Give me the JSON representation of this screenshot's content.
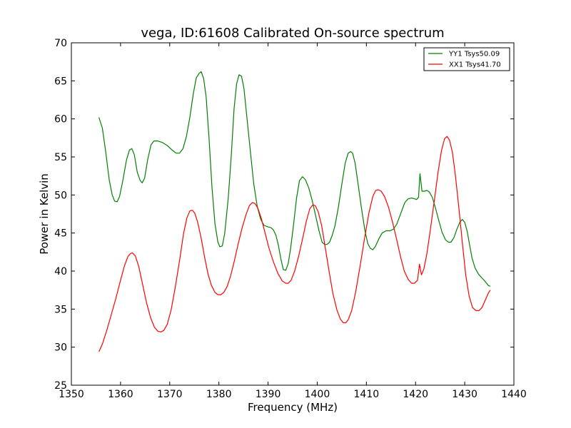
{
  "chart_data": {
    "type": "line",
    "title": "vega, ID:61608 Calibrated On-source spectrum",
    "xlabel": "Frequency (MHz)",
    "ylabel": "Power in Kelvin",
    "xlim": [
      1350,
      1440
    ],
    "ylim": [
      25,
      70
    ],
    "xticks": [
      1350,
      1360,
      1370,
      1380,
      1390,
      1400,
      1410,
      1420,
      1430,
      1440
    ],
    "yticks": [
      25,
      30,
      35,
      40,
      45,
      50,
      55,
      60,
      65,
      70
    ],
    "grid": false,
    "legend_position": "top-right",
    "series": [
      {
        "name": "YY1 Tsys50.09",
        "color": "#008000",
        "points": [
          [
            1355.6,
            60.2
          ],
          [
            1356.3,
            58.8
          ],
          [
            1357.0,
            55.6
          ],
          [
            1357.7,
            52.0
          ],
          [
            1358.3,
            50.0
          ],
          [
            1358.8,
            49.2
          ],
          [
            1359.3,
            49.1
          ],
          [
            1359.8,
            49.8
          ],
          [
            1360.5,
            52.0
          ],
          [
            1361.2,
            54.6
          ],
          [
            1361.8,
            55.9
          ],
          [
            1362.3,
            56.1
          ],
          [
            1362.8,
            55.3
          ],
          [
            1363.4,
            53.0
          ],
          [
            1364.0,
            51.9
          ],
          [
            1364.4,
            51.6
          ],
          [
            1364.9,
            52.2
          ],
          [
            1365.5,
            54.6
          ],
          [
            1366.2,
            56.6
          ],
          [
            1366.8,
            57.1
          ],
          [
            1367.5,
            57.1
          ],
          [
            1368.5,
            56.9
          ],
          [
            1369.5,
            56.5
          ],
          [
            1370.5,
            55.9
          ],
          [
            1371.3,
            55.5
          ],
          [
            1372.0,
            55.5
          ],
          [
            1372.7,
            56.1
          ],
          [
            1373.4,
            57.7
          ],
          [
            1374.1,
            60.2
          ],
          [
            1374.8,
            63.3
          ],
          [
            1375.4,
            65.4
          ],
          [
            1376.0,
            66.0
          ],
          [
            1376.4,
            66.2
          ],
          [
            1376.9,
            65.3
          ],
          [
            1377.4,
            62.9
          ],
          [
            1378.0,
            57.4
          ],
          [
            1378.6,
            51.0
          ],
          [
            1379.2,
            46.2
          ],
          [
            1379.8,
            43.8
          ],
          [
            1380.2,
            43.2
          ],
          [
            1380.7,
            43.3
          ],
          [
            1381.2,
            45.0
          ],
          [
            1381.9,
            49.6
          ],
          [
            1382.5,
            55.0
          ],
          [
            1383.1,
            61.4
          ],
          [
            1383.6,
            64.6
          ],
          [
            1384.1,
            65.8
          ],
          [
            1384.6,
            65.6
          ],
          [
            1385.1,
            64.0
          ],
          [
            1385.7,
            60.2
          ],
          [
            1386.4,
            55.7
          ],
          [
            1387.1,
            51.4
          ],
          [
            1387.8,
            48.5
          ],
          [
            1388.5,
            46.8
          ],
          [
            1389.2,
            46.0
          ],
          [
            1390.0,
            45.8
          ],
          [
            1390.6,
            45.7
          ],
          [
            1391.1,
            45.4
          ],
          [
            1391.6,
            44.7
          ],
          [
            1392.1,
            43.4
          ],
          [
            1392.6,
            41.6
          ],
          [
            1393.1,
            40.2
          ],
          [
            1393.6,
            40.1
          ],
          [
            1394.1,
            41.0
          ],
          [
            1394.6,
            43.0
          ],
          [
            1395.2,
            46.2
          ],
          [
            1395.8,
            49.6
          ],
          [
            1396.4,
            51.9
          ],
          [
            1397.0,
            52.4
          ],
          [
            1397.6,
            52.0
          ],
          [
            1398.3,
            50.9
          ],
          [
            1399.0,
            49.2
          ],
          [
            1399.7,
            47.2
          ],
          [
            1400.4,
            45.2
          ],
          [
            1401.0,
            43.8
          ],
          [
            1401.5,
            43.5
          ],
          [
            1402.0,
            43.5
          ],
          [
            1402.5,
            43.8
          ],
          [
            1403.0,
            44.6
          ],
          [
            1403.6,
            45.9
          ],
          [
            1404.3,
            48.4
          ],
          [
            1405.0,
            51.4
          ],
          [
            1405.7,
            54.2
          ],
          [
            1406.3,
            55.5
          ],
          [
            1406.8,
            55.7
          ],
          [
            1407.2,
            55.5
          ],
          [
            1407.7,
            54.2
          ],
          [
            1408.3,
            51.5
          ],
          [
            1409.0,
            48.3
          ],
          [
            1409.7,
            45.3
          ],
          [
            1410.3,
            43.6
          ],
          [
            1410.8,
            43.0
          ],
          [
            1411.3,
            42.8
          ],
          [
            1411.8,
            43.2
          ],
          [
            1412.5,
            44.2
          ],
          [
            1413.2,
            45.0
          ],
          [
            1414.0,
            45.3
          ],
          [
            1414.8,
            45.3
          ],
          [
            1415.5,
            45.5
          ],
          [
            1416.2,
            46.2
          ],
          [
            1417.0,
            47.6
          ],
          [
            1417.8,
            49.0
          ],
          [
            1418.5,
            49.5
          ],
          [
            1419.2,
            49.6
          ],
          [
            1419.8,
            49.5
          ],
          [
            1420.2,
            49.4
          ],
          [
            1420.6,
            49.7
          ],
          [
            1420.9,
            52.8
          ],
          [
            1421.3,
            50.5
          ],
          [
            1421.8,
            50.5
          ],
          [
            1422.3,
            50.6
          ],
          [
            1422.8,
            50.4
          ],
          [
            1423.4,
            49.7
          ],
          [
            1424.0,
            48.4
          ],
          [
            1424.7,
            46.7
          ],
          [
            1425.4,
            45.1
          ],
          [
            1426.1,
            44.1
          ],
          [
            1426.7,
            43.8
          ],
          [
            1427.2,
            43.8
          ],
          [
            1427.8,
            44.4
          ],
          [
            1428.4,
            45.5
          ],
          [
            1429.0,
            46.4
          ],
          [
            1429.5,
            46.8
          ],
          [
            1430.0,
            46.4
          ],
          [
            1430.5,
            45.2
          ],
          [
            1431.0,
            43.4
          ],
          [
            1431.5,
            41.7
          ],
          [
            1432.1,
            40.4
          ],
          [
            1432.8,
            39.6
          ],
          [
            1433.5,
            39.1
          ],
          [
            1434.2,
            38.6
          ],
          [
            1434.8,
            38.1
          ],
          [
            1435.2,
            38.0
          ]
        ]
      },
      {
        "name": "XX1 Tsys41.70",
        "color": "#ff0000",
        "points": [
          [
            1355.6,
            29.4
          ],
          [
            1356.3,
            30.4
          ],
          [
            1357.1,
            32.0
          ],
          [
            1358.0,
            34.0
          ],
          [
            1359.0,
            36.3
          ],
          [
            1360.0,
            38.8
          ],
          [
            1360.8,
            40.7
          ],
          [
            1361.5,
            41.9
          ],
          [
            1362.0,
            42.3
          ],
          [
            1362.4,
            42.4
          ],
          [
            1363.0,
            42.0
          ],
          [
            1363.7,
            40.6
          ],
          [
            1364.5,
            38.2
          ],
          [
            1365.3,
            35.8
          ],
          [
            1366.1,
            33.9
          ],
          [
            1366.9,
            32.6
          ],
          [
            1367.6,
            32.1
          ],
          [
            1368.2,
            32.0
          ],
          [
            1368.8,
            32.2
          ],
          [
            1369.5,
            33.0
          ],
          [
            1370.3,
            34.9
          ],
          [
            1371.1,
            37.8
          ],
          [
            1372.0,
            41.4
          ],
          [
            1372.8,
            44.9
          ],
          [
            1373.5,
            47.0
          ],
          [
            1374.1,
            47.9
          ],
          [
            1374.6,
            48.0
          ],
          [
            1375.1,
            47.6
          ],
          [
            1375.7,
            46.4
          ],
          [
            1376.4,
            44.3
          ],
          [
            1377.1,
            41.8
          ],
          [
            1377.8,
            39.6
          ],
          [
            1378.5,
            38.1
          ],
          [
            1379.2,
            37.2
          ],
          [
            1379.8,
            36.9
          ],
          [
            1380.4,
            36.9
          ],
          [
            1381.0,
            37.2
          ],
          [
            1381.7,
            38.0
          ],
          [
            1382.4,
            39.4
          ],
          [
            1383.1,
            41.2
          ],
          [
            1383.9,
            43.5
          ],
          [
            1384.7,
            45.6
          ],
          [
            1385.5,
            47.4
          ],
          [
            1386.2,
            48.6
          ],
          [
            1386.8,
            49.0
          ],
          [
            1387.3,
            48.9
          ],
          [
            1387.9,
            48.3
          ],
          [
            1388.6,
            47.0
          ],
          [
            1389.4,
            45.0
          ],
          [
            1390.2,
            43.0
          ],
          [
            1391.1,
            41.2
          ],
          [
            1392.0,
            39.7
          ],
          [
            1392.9,
            38.7
          ],
          [
            1393.6,
            38.4
          ],
          [
            1394.1,
            38.4
          ],
          [
            1394.7,
            38.8
          ],
          [
            1395.4,
            40.0
          ],
          [
            1396.2,
            41.9
          ],
          [
            1397.0,
            44.2
          ],
          [
            1397.8,
            46.6
          ],
          [
            1398.5,
            48.2
          ],
          [
            1399.1,
            48.7
          ],
          [
            1399.6,
            48.6
          ],
          [
            1400.2,
            47.8
          ],
          [
            1400.9,
            46.0
          ],
          [
            1401.6,
            43.2
          ],
          [
            1402.4,
            40.0
          ],
          [
            1403.2,
            37.0
          ],
          [
            1404.0,
            34.9
          ],
          [
            1404.7,
            33.7
          ],
          [
            1405.3,
            33.2
          ],
          [
            1405.8,
            33.2
          ],
          [
            1406.3,
            33.6
          ],
          [
            1407.0,
            34.8
          ],
          [
            1407.8,
            37.2
          ],
          [
            1408.7,
            40.6
          ],
          [
            1409.6,
            44.2
          ],
          [
            1410.5,
            47.6
          ],
          [
            1411.3,
            49.8
          ],
          [
            1411.9,
            50.6
          ],
          [
            1412.4,
            50.7
          ],
          [
            1413.0,
            50.5
          ],
          [
            1413.7,
            49.8
          ],
          [
            1414.5,
            48.4
          ],
          [
            1415.3,
            46.5
          ],
          [
            1416.1,
            44.3
          ],
          [
            1416.9,
            42.0
          ],
          [
            1417.7,
            40.0
          ],
          [
            1418.5,
            38.9
          ],
          [
            1419.2,
            38.4
          ],
          [
            1419.8,
            38.4
          ],
          [
            1420.4,
            38.8
          ],
          [
            1420.8,
            40.9
          ],
          [
            1421.2,
            39.5
          ],
          [
            1421.7,
            40.3
          ],
          [
            1422.3,
            42.3
          ],
          [
            1423.0,
            45.4
          ],
          [
            1423.8,
            49.2
          ],
          [
            1424.6,
            53.1
          ],
          [
            1425.3,
            55.9
          ],
          [
            1425.9,
            57.4
          ],
          [
            1426.4,
            57.7
          ],
          [
            1426.9,
            57.2
          ],
          [
            1427.5,
            55.6
          ],
          [
            1428.1,
            52.6
          ],
          [
            1428.8,
            48.4
          ],
          [
            1429.5,
            43.8
          ],
          [
            1430.2,
            39.5
          ],
          [
            1430.9,
            36.7
          ],
          [
            1431.6,
            35.2
          ],
          [
            1432.3,
            34.8
          ],
          [
            1432.9,
            34.8
          ],
          [
            1433.5,
            35.2
          ],
          [
            1434.2,
            36.2
          ],
          [
            1434.8,
            37.1
          ],
          [
            1435.2,
            37.5
          ]
        ]
      }
    ]
  }
}
